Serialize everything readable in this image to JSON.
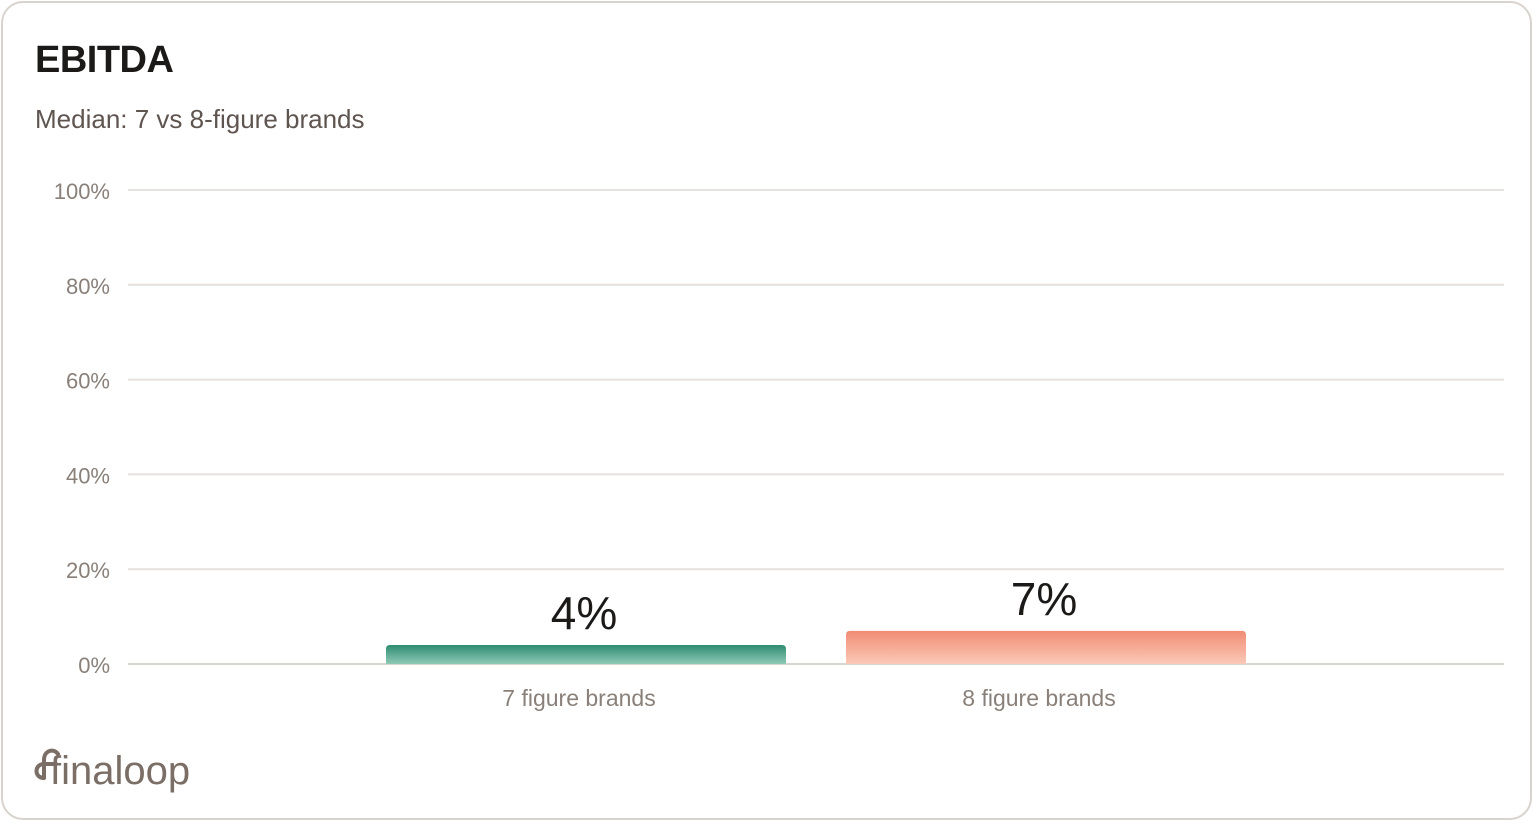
{
  "title": "EBITDA",
  "subtitle": "Median: 7 vs 8-figure brands",
  "brand": "finaloop",
  "colors": {
    "border": "#d9d3cd",
    "grid": "#e4e1de",
    "tick_text": "#8a807a",
    "bar_7_top": "#2e8c71",
    "bar_7_bottom": "#8fcab6",
    "bar_8_top": "#f18c74",
    "bar_8_bottom": "#fbc9b8",
    "logo": "#7a6e66"
  },
  "chart_data": {
    "type": "bar",
    "title": "EBITDA",
    "subtitle": "Median: 7 vs 8-figure brands",
    "categories": [
      "7 figure brands",
      "8 figure brands"
    ],
    "values": [
      4,
      7
    ],
    "data_labels": [
      "4%",
      "7%"
    ],
    "y_ticks": [
      "0%",
      "20%",
      "40%",
      "60%",
      "80%",
      "100%"
    ],
    "y_tick_values": [
      0,
      20,
      40,
      60,
      80,
      100
    ],
    "ylim": [
      0,
      100
    ],
    "xlabel": "",
    "ylabel": "",
    "grid": true,
    "legend": "none"
  }
}
